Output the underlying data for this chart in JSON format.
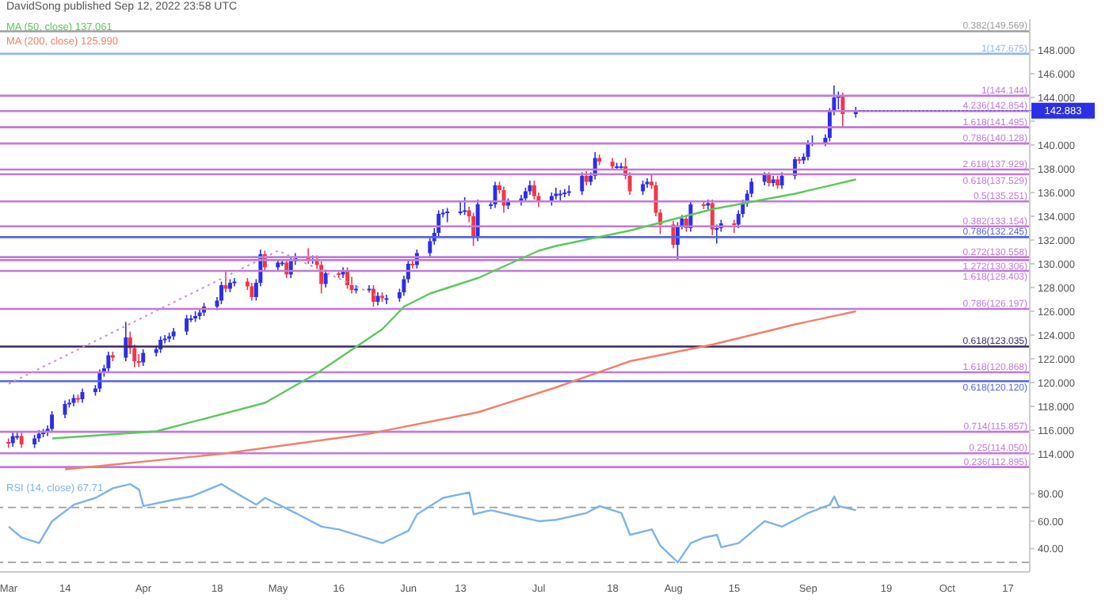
{
  "chart_data": [
    {
      "type": "candlestick",
      "title": "DavidSong published Sep 12, 2022 23:58 UTC",
      "legend": "top left",
      "tick_labels": "y",
      "colors": [
        "#f23645",
        "#2b2fe6",
        "#2b2fe6",
        "#f23645",
        "#2b2fe6",
        "#2b2fe6",
        "#2b2fe6",
        "#2b2fe6",
        "#2b2fe6",
        "#2b2fe6",
        "#2b2fe6",
        "#2b2fe6",
        "#f23645",
        "#2b2fe6",
        "#2b2fe6",
        "#2b2fe6",
        "#2b2fe6",
        "#2b2fe6",
        "#f23645",
        "#2b2fe6",
        "#f23645",
        "#f23645",
        "#f23645",
        "#2b2fe6",
        "#2b2fe6",
        "#2b2fe6",
        "#2b2fe6",
        "#2b2fe6",
        "#2b2fe6",
        "#2b2fe6",
        "#2b2fe6",
        "#2b2fe6",
        "#2b2fe6",
        "#2b2fe6",
        "#2b2fe6",
        "#2b2fe6",
        "#f23645",
        "#2b2fe6",
        "#2b2fe6",
        "#f23645",
        "#f23645",
        "#2b2fe6",
        "#2b2fe6",
        "#f23645",
        "#2b2fe6",
        "#2b2fe6",
        "#f23645",
        "#2b2fe6",
        "#2b2fe6",
        "#f23645",
        "#2b2fe6",
        "#f23645",
        "#f23645",
        "#2b2fe6",
        "#f23645",
        "#2b2fe6",
        "#f23645",
        "#f23645",
        "#2b2fe6",
        "#2b2fe6",
        "#f23645",
        "#2b2fe6",
        "#f23645",
        "#2b2fe6",
        "#2b2fe6",
        "#2b2fe6",
        "#2b2fe6",
        "#f23645",
        "#2b2fe6",
        "#2b2fe6",
        "#2b2fe6",
        "#2b2fe6",
        "#2b2fe6",
        "#2b2fe6",
        "#2b2fe6",
        "#2b2fe6",
        "#f23645",
        "#f23645",
        "#2b2fe6",
        "#2b2fe6",
        "#2b2fe6",
        "#f23645",
        "#f23645",
        "#2b2fe6",
        "#2b2fe6",
        "#2b2fe6",
        "#2b2fe6",
        "#f23645",
        "#f23645",
        "#2b2fe6",
        "#2b2fe6",
        "#2b2fe6",
        "#2b2fe6",
        "#2b2fe6",
        "#2b2fe6",
        "#f23645",
        "#2b2fe6",
        "#2b2fe6",
        "#f23645",
        "#f23645",
        "#2b2fe6",
        "#2b2fe6",
        "#f23645",
        "#f23645",
        "#2b2fe6",
        "#2b2fe6",
        "#f23645",
        "#f23645",
        "#f23645",
        "#f23645",
        "#2b2fe6",
        "#2b2fe6",
        "#f23645",
        "#2b2fe6",
        "#f23645",
        "#2b2fe6",
        "#f23645",
        "#2b2fe6",
        "#2b2fe6",
        "#f23645",
        "#2b2fe6",
        "#2b2fe6",
        "#2b2fe6",
        "#2b2fe6",
        "#2b2fe6",
        "#f23645",
        "#2b2fe6",
        "#f23645",
        "#2b2fe6",
        "#2b2fe6",
        "#f23645",
        "#2b2fe6",
        "#2b2fe6",
        "#2b2fe6",
        "#2b2fe6",
        "#2b2fe6",
        "#2b2fe6",
        "#2b2fe6",
        "#f23645",
        "#2b2fe6"
      ],
      "x": [
        "2022-03-01",
        "2022-03-02",
        "2022-03-03",
        "2022-03-04",
        "2022-03-07",
        "2022-03-08",
        "2022-03-09",
        "2022-03-10",
        "2022-03-11",
        "2022-03-14",
        "2022-03-15",
        "2022-03-16",
        "2022-03-17",
        "2022-03-18",
        "2022-03-21",
        "2022-03-22",
        "2022-03-23",
        "2022-03-24",
        "2022-03-25",
        "2022-03-28",
        "2022-03-29",
        "2022-03-30",
        "2022-03-31",
        "2022-04-01",
        "2022-04-04",
        "2022-04-05",
        "2022-04-06",
        "2022-04-07",
        "2022-04-08",
        "2022-04-11",
        "2022-04-12",
        "2022-04-13",
        "2022-04-14",
        "2022-04-15",
        "2022-04-18",
        "2022-04-19",
        "2022-04-20",
        "2022-04-21",
        "2022-04-22",
        "2022-04-25",
        "2022-04-26",
        "2022-04-27",
        "2022-04-28",
        "2022-04-29",
        "2022-05-02",
        "2022-05-03",
        "2022-05-04",
        "2022-05-05",
        "2022-05-06",
        "2022-05-09",
        "2022-05-10",
        "2022-05-11",
        "2022-05-12",
        "2022-05-13",
        "2022-05-16",
        "2022-05-17",
        "2022-05-18",
        "2022-05-19",
        "2022-05-20",
        "2022-05-23",
        "2022-05-24",
        "2022-05-25",
        "2022-05-26",
        "2022-05-27",
        "2022-05-30",
        "2022-05-31",
        "2022-06-01",
        "2022-06-02",
        "2022-06-03",
        "2022-06-06",
        "2022-06-07",
        "2022-06-08",
        "2022-06-09",
        "2022-06-10",
        "2022-06-13",
        "2022-06-14",
        "2022-06-15",
        "2022-06-16",
        "2022-06-17",
        "2022-06-20",
        "2022-06-21",
        "2022-06-22",
        "2022-06-23",
        "2022-06-24",
        "2022-06-27",
        "2022-06-28",
        "2022-06-29",
        "2022-06-30",
        "2022-07-01",
        "2022-07-04",
        "2022-07-05",
        "2022-07-06",
        "2022-07-07",
        "2022-07-08",
        "2022-07-11",
        "2022-07-12",
        "2022-07-13",
        "2022-07-14",
        "2022-07-15",
        "2022-07-18",
        "2022-07-19",
        "2022-07-20",
        "2022-07-21",
        "2022-07-22",
        "2022-07-25",
        "2022-07-26",
        "2022-07-27",
        "2022-07-28",
        "2022-07-29",
        "2022-08-01",
        "2022-08-02",
        "2022-08-03",
        "2022-08-04",
        "2022-08-05",
        "2022-08-08",
        "2022-08-09",
        "2022-08-10",
        "2022-08-11",
        "2022-08-12",
        "2022-08-15",
        "2022-08-16",
        "2022-08-17",
        "2022-08-18",
        "2022-08-19",
        "2022-08-22",
        "2022-08-23",
        "2022-08-24",
        "2022-08-25",
        "2022-08-26",
        "2022-08-29",
        "2022-08-30",
        "2022-08-31",
        "2022-09-01",
        "2022-09-02",
        "2022-09-05",
        "2022-09-06",
        "2022-09-07",
        "2022-09-08",
        "2022-09-09",
        "2022-09-12"
      ],
      "ohlc": [
        [
          115.0,
          115.3,
          114.5,
          114.9
        ],
        [
          114.9,
          115.8,
          114.6,
          115.5
        ],
        [
          115.5,
          115.8,
          115.2,
          115.5
        ],
        [
          115.5,
          115.8,
          114.5,
          114.8
        ],
        [
          114.8,
          115.6,
          114.5,
          115.3
        ],
        [
          115.3,
          116.0,
          115.0,
          115.7
        ],
        [
          115.7,
          116.1,
          115.4,
          115.8
        ],
        [
          115.8,
          116.4,
          115.5,
          116.1
        ],
        [
          116.1,
          117.6,
          115.8,
          117.3
        ],
        [
          117.3,
          118.5,
          117.0,
          118.2
        ],
        [
          118.2,
          118.6,
          117.9,
          118.3
        ],
        [
          118.3,
          119.0,
          118.0,
          118.7
        ],
        [
          118.7,
          119.0,
          118.3,
          118.6
        ],
        [
          118.6,
          119.5,
          118.3,
          119.2
        ],
        [
          119.2,
          119.8,
          118.9,
          119.5
        ],
        [
          119.5,
          121.1,
          119.2,
          120.8
        ],
        [
          120.8,
          121.5,
          120.5,
          121.2
        ],
        [
          121.2,
          122.6,
          120.9,
          122.3
        ],
        [
          122.3,
          122.6,
          121.8,
          122.1
        ],
        [
          122.1,
          125.1,
          121.8,
          123.8
        ],
        [
          123.8,
          124.3,
          122.4,
          122.9
        ],
        [
          122.9,
          123.2,
          121.3,
          121.8
        ],
        [
          121.8,
          122.4,
          121.3,
          121.7
        ],
        [
          121.7,
          122.8,
          121.4,
          122.5
        ],
        [
          122.5,
          123.1,
          122.2,
          122.8
        ],
        [
          122.8,
          123.9,
          122.5,
          123.6
        ],
        [
          123.6,
          124.0,
          123.3,
          123.7
        ],
        [
          123.7,
          124.2,
          123.4,
          123.9
        ],
        [
          123.9,
          124.6,
          123.6,
          124.3
        ],
        [
          124.3,
          125.7,
          124.0,
          125.4
        ],
        [
          125.4,
          125.7,
          125.1,
          125.4
        ],
        [
          125.4,
          126.0,
          125.1,
          125.6
        ],
        [
          125.6,
          126.2,
          125.3,
          125.9
        ],
        [
          125.9,
          126.7,
          125.6,
          126.4
        ],
        [
          126.4,
          127.2,
          126.1,
          126.9
        ],
        [
          126.9,
          128.5,
          126.6,
          128.2
        ],
        [
          128.2,
          129.4,
          127.6,
          127.9
        ],
        [
          127.9,
          128.7,
          127.6,
          128.4
        ],
        [
          128.4,
          128.8,
          128.1,
          128.5
        ],
        [
          128.5,
          128.8,
          127.8,
          128.1
        ],
        [
          128.1,
          128.4,
          126.9,
          127.2
        ],
        [
          127.2,
          128.7,
          126.9,
          128.4
        ],
        [
          128.4,
          131.2,
          128.1,
          130.8
        ],
        [
          130.8,
          131.1,
          129.4,
          129.7
        ],
        [
          129.7,
          130.4,
          129.4,
          130.1
        ],
        [
          130.1,
          130.4,
          129.8,
          130.1
        ],
        [
          130.1,
          130.4,
          128.8,
          129.1
        ],
        [
          129.1,
          130.5,
          128.8,
          130.2
        ],
        [
          130.2,
          130.9,
          129.9,
          130.6
        ],
        [
          130.6,
          131.3,
          130.0,
          130.3
        ],
        [
          130.3,
          130.7,
          130.0,
          130.4
        ],
        [
          130.4,
          130.7,
          129.6,
          129.9
        ],
        [
          129.9,
          130.2,
          127.5,
          128.3
        ],
        [
          128.3,
          129.5,
          128.0,
          129.2
        ],
        [
          129.2,
          129.4,
          128.8,
          129.1
        ],
        [
          129.1,
          129.7,
          128.8,
          129.4
        ],
        [
          129.4,
          129.7,
          127.9,
          128.2
        ],
        [
          128.2,
          128.9,
          127.5,
          127.8
        ],
        [
          127.8,
          128.2,
          127.5,
          127.9
        ],
        [
          127.9,
          128.2,
          127.6,
          127.9
        ],
        [
          127.9,
          128.2,
          126.4,
          126.8
        ],
        [
          126.8,
          127.6,
          126.5,
          127.3
        ],
        [
          127.3,
          127.6,
          126.8,
          127.1
        ],
        [
          127.1,
          127.4,
          126.6,
          127.1
        ],
        [
          127.1,
          127.9,
          126.8,
          127.6
        ],
        [
          127.6,
          129.0,
          127.3,
          128.7
        ],
        [
          128.7,
          130.3,
          128.4,
          130.0
        ],
        [
          130.0,
          130.3,
          129.6,
          129.9
        ],
        [
          129.9,
          131.2,
          129.6,
          130.9
        ],
        [
          130.9,
          132.2,
          130.6,
          131.9
        ],
        [
          131.9,
          133.0,
          131.6,
          132.6
        ],
        [
          132.6,
          134.5,
          132.3,
          134.2
        ],
        [
          134.2,
          134.6,
          133.9,
          134.3
        ],
        [
          134.3,
          134.7,
          133.5,
          134.4
        ],
        [
          134.4,
          135.2,
          134.1,
          134.4
        ],
        [
          134.4,
          135.6,
          134.1,
          134.5
        ],
        [
          134.5,
          134.8,
          133.5,
          134.0
        ],
        [
          134.0,
          134.3,
          131.5,
          132.2
        ],
        [
          132.2,
          135.4,
          131.9,
          135.0
        ],
        [
          135.0,
          135.3,
          134.6,
          135.0
        ],
        [
          135.0,
          136.9,
          134.7,
          136.6
        ],
        [
          136.6,
          136.9,
          135.9,
          136.2
        ],
        [
          136.2,
          136.5,
          134.3,
          134.9
        ],
        [
          134.9,
          135.5,
          134.6,
          135.2
        ],
        [
          135.2,
          135.8,
          134.9,
          135.5
        ],
        [
          135.5,
          136.4,
          135.2,
          136.1
        ],
        [
          136.1,
          137.0,
          135.8,
          136.6
        ],
        [
          136.6,
          137.0,
          135.4,
          135.7
        ],
        [
          135.7,
          136.0,
          134.8,
          135.2
        ],
        [
          135.2,
          136.0,
          134.9,
          135.7
        ],
        [
          135.7,
          136.4,
          135.4,
          135.9
        ],
        [
          135.9,
          136.2,
          135.3,
          135.9
        ],
        [
          135.9,
          136.3,
          135.6,
          136.0
        ],
        [
          136.0,
          136.6,
          135.7,
          136.1
        ],
        [
          136.1,
          137.7,
          135.8,
          137.4
        ],
        [
          137.4,
          137.8,
          136.6,
          136.9
        ],
        [
          136.9,
          137.7,
          136.6,
          137.4
        ],
        [
          137.4,
          139.4,
          137.1,
          138.9
        ],
        [
          138.9,
          139.2,
          138.3,
          138.6
        ],
        [
          138.6,
          138.9,
          137.9,
          138.2
        ],
        [
          138.2,
          138.5,
          137.9,
          138.2
        ],
        [
          138.2,
          138.5,
          137.9,
          138.2
        ],
        [
          138.2,
          138.9,
          137.1,
          137.4
        ],
        [
          137.4,
          137.7,
          135.8,
          136.1
        ],
        [
          136.1,
          137.0,
          135.8,
          136.7
        ],
        [
          136.7,
          137.2,
          136.4,
          136.9
        ],
        [
          136.9,
          137.5,
          136.3,
          136.6
        ],
        [
          136.6,
          136.9,
          134.0,
          134.3
        ],
        [
          134.3,
          134.6,
          132.5,
          133.3
        ],
        [
          133.3,
          133.6,
          131.3,
          131.6
        ],
        [
          131.6,
          133.5,
          130.4,
          133.2
        ],
        [
          133.2,
          134.1,
          132.9,
          133.8
        ],
        [
          133.8,
          134.1,
          132.7,
          133.0
        ],
        [
          133.0,
          135.3,
          132.7,
          135.0
        ],
        [
          135.0,
          135.3,
          134.6,
          134.9
        ],
        [
          134.9,
          135.4,
          134.6,
          135.1
        ],
        [
          135.1,
          135.4,
          132.4,
          132.9
        ],
        [
          132.9,
          133.3,
          131.7,
          133.0
        ],
        [
          133.0,
          133.7,
          132.7,
          133.4
        ],
        [
          133.4,
          133.7,
          132.6,
          133.3
        ],
        [
          133.3,
          134.5,
          133.0,
          134.2
        ],
        [
          134.2,
          135.4,
          133.9,
          135.1
        ],
        [
          135.1,
          136.2,
          134.8,
          135.9
        ],
        [
          135.9,
          137.2,
          135.6,
          136.9
        ],
        [
          136.9,
          137.7,
          136.6,
          137.5
        ],
        [
          137.5,
          137.7,
          136.5,
          136.8
        ],
        [
          136.8,
          137.4,
          136.5,
          137.1
        ],
        [
          137.1,
          137.4,
          136.3,
          136.6
        ],
        [
          136.6,
          137.7,
          136.3,
          137.4
        ],
        [
          137.4,
          139.0,
          137.1,
          138.8
        ],
        [
          138.8,
          139.0,
          138.4,
          138.7
        ],
        [
          138.7,
          139.3,
          138.4,
          139.0
        ],
        [
          139.0,
          140.4,
          138.7,
          140.2
        ],
        [
          140.2,
          140.8,
          139.9,
          140.2
        ],
        [
          140.2,
          140.9,
          139.9,
          140.6
        ],
        [
          140.6,
          143.1,
          140.3,
          142.8
        ],
        [
          142.8,
          145.0,
          142.5,
          144.0
        ],
        [
          144.0,
          144.5,
          143.0,
          144.1
        ],
        [
          144.1,
          144.4,
          141.5,
          142.6
        ],
        [
          142.6,
          143.2,
          142.3,
          142.9
        ]
      ],
      "series": [
        {
          "type": "line",
          "name": "MA (50, close) 137.061",
          "color": "#5cc85c",
          "x": [
            "2022-03-11",
            "2022-04-04",
            "2022-04-29",
            "2022-05-11",
            "2022-05-26",
            "2022-05-31",
            "2022-06-06",
            "2022-06-17",
            "2022-07-01",
            "2022-07-05",
            "2022-07-22",
            "2022-08-10",
            "2022-08-29",
            "2022-09-12"
          ],
          "values": [
            115.3,
            115.9,
            118.3,
            120.8,
            124.5,
            126.4,
            127.5,
            128.8,
            131.1,
            131.5,
            132.8,
            134.6,
            135.9,
            137.1
          ]
        },
        {
          "type": "line",
          "name": "MA (200, close) 125.990",
          "color": "#f0806a",
          "x": [
            "2022-03-14",
            "2022-04-19",
            "2022-05-23",
            "2022-06-17",
            "2022-07-05",
            "2022-07-22",
            "2022-08-10",
            "2022-08-29",
            "2022-09-12"
          ],
          "values": [
            112.7,
            114.0,
            115.7,
            117.5,
            119.6,
            121.8,
            123.2,
            124.9,
            126.0
          ]
        },
        {
          "type": "line",
          "line_style": "dotted",
          "color": "#d58ad5",
          "x": [
            "2022-03-01",
            "2022-05-02",
            "2022-05-26"
          ],
          "values": [
            119.9,
            131.1,
            127.1
          ]
        }
      ],
      "xlim": [
        "2022-02-27",
        "2022-10-22"
      ],
      "ylim": [
        111.8,
        150.6
      ],
      "yticks": [
        {
          "value": 114,
          "label": "114.000"
        },
        {
          "value": 116,
          "label": "116.000"
        },
        {
          "value": 118,
          "label": "118.000"
        },
        {
          "value": 120,
          "label": "120.000"
        },
        {
          "value": 122,
          "label": "122.000"
        },
        {
          "value": 124,
          "label": "124.000"
        },
        {
          "value": 126,
          "label": "126.000"
        },
        {
          "value": 128,
          "label": "128.000"
        },
        {
          "value": 130,
          "label": "130.000"
        },
        {
          "value": 132,
          "label": "132.000"
        },
        {
          "value": 134,
          "label": "134.000"
        },
        {
          "value": 136,
          "label": "136.000"
        },
        {
          "value": 138,
          "label": "138.000"
        },
        {
          "value": 140,
          "label": "140.000"
        },
        {
          "value": 142,
          "label": null
        },
        {
          "value": 144,
          "label": "144.000"
        },
        {
          "value": 146,
          "label": "146.000"
        },
        {
          "value": 148,
          "label": "148.000"
        }
      ],
      "ref_lines": [
        {
          "axis": "y",
          "value": 149.569,
          "label": "0.382(149.569)",
          "color": "#9e9e9e"
        },
        {
          "axis": "y",
          "value": 147.675,
          "label": "1(147.675)",
          "color": "#8fb8f0"
        },
        {
          "axis": "y",
          "value": 144.144,
          "label": "1(144.144)",
          "color": "#c07ada"
        },
        {
          "axis": "y",
          "value": 142.854,
          "label": "4.236(142.854)",
          "color": "#c07ada"
        },
        {
          "axis": "y",
          "value": 141.495,
          "label": "1.618(141.495)",
          "color": "#c07ada"
        },
        {
          "axis": "y",
          "value": 140.128,
          "label": "0.786(140.128)",
          "color": "#c07ada"
        },
        {
          "axis": "y",
          "value": 137.929,
          "label": "2.618(137.929)",
          "color": "#c07ada"
        },
        {
          "axis": "y",
          "value": 137.529,
          "label": "0.618(137.529)",
          "color": "#c07ada"
        },
        {
          "axis": "y",
          "value": 135.251,
          "label": "0.5(135.251)",
          "color": "#c07ada"
        },
        {
          "axis": "y",
          "value": 133.154,
          "label": "0.382(133.154)",
          "color": "#c07ada"
        },
        {
          "axis": "y",
          "value": 132.245,
          "label": "0.786(132.245)",
          "color": "#5566e6"
        },
        {
          "axis": "y",
          "value": 130.558,
          "label": "0.272(130.558)",
          "color": "#c07ada"
        },
        {
          "axis": "y",
          "value": 130.306,
          "label": "1.272(130.306)",
          "color": "#c07ada"
        },
        {
          "axis": "y",
          "value": 129.403,
          "label": "1.618(129.403)",
          "color": "#c07ada"
        },
        {
          "axis": "y",
          "value": 126.197,
          "label": "0.786(126.197)",
          "color": "#c07ada"
        },
        {
          "axis": "y",
          "value": 123.035,
          "label": "0.618(123.035)",
          "color": "#3a2a5e"
        },
        {
          "axis": "y",
          "value": 120.868,
          "label": "1.618(120.868)",
          "color": "#c07ada"
        },
        {
          "axis": "y",
          "value": 120.12,
          "label": "0.618(120.120)",
          "color": "#5566e6"
        },
        {
          "axis": "y",
          "value": 115.857,
          "label": "0.714(115.857)",
          "color": "#c07ada"
        },
        {
          "axis": "y",
          "value": 114.05,
          "label": "0.25(114.050)",
          "color": "#c07ada"
        },
        {
          "axis": "y",
          "value": 112.895,
          "label": "0.236(112.895)",
          "color": "#c07ada"
        }
      ],
      "annotations": [
        {
          "text": "142.883",
          "x": "2022-09-12",
          "y": 142.883
        }
      ]
    },
    {
      "type": "line",
      "legend": "top left",
      "series": [
        {
          "name": "RSI (14, close) 67.71",
          "color": "#7eb3e8",
          "x": [
            "2022-03-01",
            "2022-03-04",
            "2022-03-08",
            "2022-03-11",
            "2022-03-16",
            "2022-03-21",
            "2022-03-25",
            "2022-03-29",
            "2022-03-31",
            "2022-04-01",
            "2022-04-07",
            "2022-04-12",
            "2022-04-19",
            "2022-04-21",
            "2022-04-27",
            "2022-04-29",
            "2022-05-06",
            "2022-05-12",
            "2022-05-16",
            "2022-05-23",
            "2022-05-26",
            "2022-06-01",
            "2022-06-03",
            "2022-06-09",
            "2022-06-15",
            "2022-06-16",
            "2022-06-20",
            "2022-06-24",
            "2022-07-01",
            "2022-07-05",
            "2022-07-12",
            "2022-07-15",
            "2022-07-20",
            "2022-07-22",
            "2022-07-27",
            "2022-07-29",
            "2022-08-02",
            "2022-08-05",
            "2022-08-08",
            "2022-08-11",
            "2022-08-12",
            "2022-08-16",
            "2022-08-22",
            "2022-08-26",
            "2022-09-01",
            "2022-09-06",
            "2022-09-07",
            "2022-09-08",
            "2022-09-12"
          ],
          "values": [
            56,
            48,
            44,
            60,
            72,
            77,
            84,
            87,
            83,
            71,
            75,
            78,
            87,
            83,
            72,
            77,
            66,
            56,
            54,
            47,
            44,
            53,
            65,
            77,
            81,
            65,
            68,
            65,
            60,
            61,
            66,
            71,
            66,
            50,
            54,
            42,
            30,
            44,
            48,
            50,
            41,
            44,
            60,
            56,
            66,
            72,
            78,
            71,
            68
          ]
        }
      ],
      "xlim": [
        "2022-02-27",
        "2022-10-22"
      ],
      "xticks": [
        {
          "value": "2022-03-01",
          "label": "Mar"
        },
        {
          "value": "2022-03-14",
          "label": "14"
        },
        {
          "value": "2022-04-01",
          "label": "Apr"
        },
        {
          "value": "2022-04-18",
          "label": "18"
        },
        {
          "value": "2022-05-02",
          "label": "May"
        },
        {
          "value": "2022-05-16",
          "label": "16"
        },
        {
          "value": "2022-06-01",
          "label": "Jun"
        },
        {
          "value": "2022-06-13",
          "label": "13"
        },
        {
          "value": "2022-07-01",
          "label": "Jul"
        },
        {
          "value": "2022-07-18",
          "label": "18"
        },
        {
          "value": "2022-08-01",
          "label": "Aug"
        },
        {
          "value": "2022-08-15",
          "label": "15"
        },
        {
          "value": "2022-09-01",
          "label": "Sep"
        },
        {
          "value": "2022-09-19",
          "label": "19"
        },
        {
          "value": "2022-10-03",
          "label": "Oct"
        },
        {
          "value": "2022-10-17",
          "label": "17"
        }
      ],
      "ylim": [
        23,
        90
      ],
      "yticks": [
        {
          "value": 40,
          "label": "40.00"
        },
        {
          "value": 60,
          "label": "60.00"
        },
        {
          "value": 80,
          "label": "80.00"
        }
      ],
      "ref_lines": [
        {
          "axis": "y",
          "value": 70,
          "color": "#9e9e9e",
          "line_style": "dashed"
        },
        {
          "axis": "y",
          "value": 30,
          "color": "#9e9e9e",
          "line_style": "dashed"
        }
      ]
    }
  ]
}
